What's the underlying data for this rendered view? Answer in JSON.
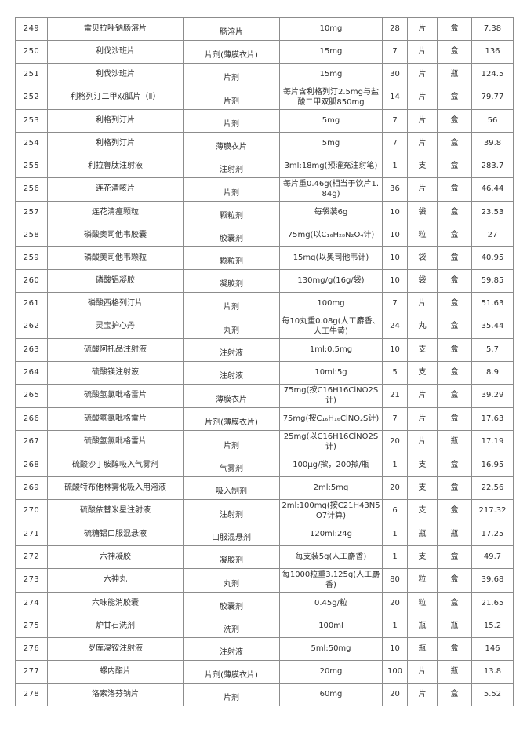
{
  "colors": {
    "table_border": "#8c8c8c",
    "text": "#2f2f2f",
    "page_background": "#ffffff"
  },
  "table": {
    "rows": [
      {
        "no": "249",
        "name": "雷贝拉唑钠肠溶片",
        "form": "肠溶片",
        "spec": "10mg",
        "qty": "28",
        "unit": "片",
        "pack": "盒",
        "price": "7.38"
      },
      {
        "no": "250",
        "name": "利伐沙班片",
        "form": "片剂(薄膜衣片)",
        "spec": "15mg",
        "qty": "7",
        "unit": "片",
        "pack": "盒",
        "price": "136"
      },
      {
        "no": "251",
        "name": "利伐沙班片",
        "form": "片剂",
        "spec": "15mg",
        "qty": "30",
        "unit": "片",
        "pack": "瓶",
        "price": "124.5"
      },
      {
        "no": "252",
        "name": "利格列汀二甲双胍片（Ⅱ）",
        "form": "片剂",
        "spec": "每片含利格列汀2.5mg与盐酸二甲双胍850mg",
        "qty": "14",
        "unit": "片",
        "pack": "盒",
        "price": "79.77"
      },
      {
        "no": "253",
        "name": "利格列汀片",
        "form": "片剂",
        "spec": "5mg",
        "qty": "7",
        "unit": "片",
        "pack": "盒",
        "price": "56"
      },
      {
        "no": "254",
        "name": "利格列汀片",
        "form": "薄膜衣片",
        "spec": "5mg",
        "qty": "7",
        "unit": "片",
        "pack": "盒",
        "price": "39.8"
      },
      {
        "no": "255",
        "name": "利拉鲁肽注射液",
        "form": "注射剂",
        "spec": "3ml:18mg(预灌充注射笔)",
        "qty": "1",
        "unit": "支",
        "pack": "盒",
        "price": "283.7"
      },
      {
        "no": "256",
        "name": "连花清咳片",
        "form": "片剂",
        "spec": "每片重0.46g(相当于饮片1.84g)",
        "qty": "36",
        "unit": "片",
        "pack": "盒",
        "price": "46.44"
      },
      {
        "no": "257",
        "name": "连花清瘟颗粒",
        "form": "颗粒剂",
        "spec": "每袋装6g",
        "qty": "10",
        "unit": "袋",
        "pack": "盒",
        "price": "23.53"
      },
      {
        "no": "258",
        "name": "磷酸奥司他韦胶囊",
        "form": "胶囊剂",
        "spec": "75mg(以C₁₆H₂₈N₂O₄计)",
        "qty": "10",
        "unit": "粒",
        "pack": "盒",
        "price": "27"
      },
      {
        "no": "259",
        "name": "磷酸奥司他韦颗粒",
        "form": "颗粒剂",
        "spec": "15mg(以奥司他韦计)",
        "qty": "10",
        "unit": "袋",
        "pack": "盒",
        "price": "40.95"
      },
      {
        "no": "260",
        "name": "磷酸铝凝胶",
        "form": "凝胶剂",
        "spec": "130mg/g(16g/袋)",
        "qty": "10",
        "unit": "袋",
        "pack": "盒",
        "price": "59.85"
      },
      {
        "no": "261",
        "name": "磷酸西格列汀片",
        "form": "片剂",
        "spec": "100mg",
        "qty": "7",
        "unit": "片",
        "pack": "盒",
        "price": "51.63"
      },
      {
        "no": "262",
        "name": "灵宝护心丹",
        "form": "丸剂",
        "spec": "每10丸重0.08g(人工麝香、人工牛黄)",
        "qty": "24",
        "unit": "丸",
        "pack": "盒",
        "price": "35.44"
      },
      {
        "no": "263",
        "name": "硫酸阿托品注射液",
        "form": "注射液",
        "spec": "1ml:0.5mg",
        "qty": "10",
        "unit": "支",
        "pack": "盒",
        "price": "5.7"
      },
      {
        "no": "264",
        "name": "硫酸镁注射液",
        "form": "注射液",
        "spec": "10ml:5g",
        "qty": "5",
        "unit": "支",
        "pack": "盒",
        "price": "8.9"
      },
      {
        "no": "265",
        "name": "硫酸氢氯吡格雷片",
        "form": "薄膜衣片",
        "spec": "75mg(按C16H16ClNO2S计)",
        "qty": "21",
        "unit": "片",
        "pack": "盒",
        "price": "39.29"
      },
      {
        "no": "266",
        "name": "硫酸氢氯吡格雷片",
        "form": "片剂(薄膜衣片)",
        "spec": "75mg(按C₁₆H₁₆ClNO₂S计)",
        "qty": "7",
        "unit": "片",
        "pack": "盒",
        "price": "17.63"
      },
      {
        "no": "267",
        "name": "硫酸氢氯吡格雷片",
        "form": "片剂",
        "spec": "25mg(以C16H16ClNO2S计)",
        "qty": "20",
        "unit": "片",
        "pack": "瓶",
        "price": "17.19"
      },
      {
        "no": "268",
        "name": "硫酸沙丁胺醇吸入气雾剂",
        "form": "气雾剂",
        "spec": "100μg/揿，200揿/瓶",
        "qty": "1",
        "unit": "支",
        "pack": "盒",
        "price": "16.95"
      },
      {
        "no": "269",
        "name": "硫酸特布他林雾化吸入用溶液",
        "form": "吸入制剂",
        "spec": "2ml:5mg",
        "qty": "20",
        "unit": "支",
        "pack": "盒",
        "price": "22.56"
      },
      {
        "no": "270",
        "name": "硫酸依替米星注射液",
        "form": "注射剂",
        "spec": "2ml:100mg(按C21H43N5O7计算)",
        "qty": "6",
        "unit": "支",
        "pack": "盒",
        "price": "217.32"
      },
      {
        "no": "271",
        "name": "硫糖铝口服混悬液",
        "form": "口服混悬剂",
        "spec": "120ml:24g",
        "qty": "1",
        "unit": "瓶",
        "pack": "瓶",
        "price": "17.25"
      },
      {
        "no": "272",
        "name": "六神凝胶",
        "form": "凝胶剂",
        "spec": "每支装5g(人工麝香)",
        "qty": "1",
        "unit": "支",
        "pack": "盒",
        "price": "49.7"
      },
      {
        "no": "273",
        "name": "六神丸",
        "form": "丸剂",
        "spec": "每1000粒重3.125g(人工麝香)",
        "qty": "80",
        "unit": "粒",
        "pack": "盒",
        "price": "39.68"
      },
      {
        "no": "274",
        "name": "六味能消胶囊",
        "form": "胶囊剂",
        "spec": "0.45g/粒",
        "qty": "20",
        "unit": "粒",
        "pack": "盒",
        "price": "21.65"
      },
      {
        "no": "275",
        "name": "炉甘石洗剂",
        "form": "洗剂",
        "spec": "100ml",
        "qty": "1",
        "unit": "瓶",
        "pack": "瓶",
        "price": "15.2"
      },
      {
        "no": "276",
        "name": "罗库溴铵注射液",
        "form": "注射液",
        "spec": "5ml:50mg",
        "qty": "10",
        "unit": "瓶",
        "pack": "盒",
        "price": "146"
      },
      {
        "no": "277",
        "name": "螺内酯片",
        "form": "片剂(薄膜衣片)",
        "spec": "20mg",
        "qty": "100",
        "unit": "片",
        "pack": "瓶",
        "price": "13.8"
      },
      {
        "no": "278",
        "name": "洛索洛芬钠片",
        "form": "片剂",
        "spec": "60mg",
        "qty": "20",
        "unit": "片",
        "pack": "盒",
        "price": "5.52"
      }
    ]
  }
}
